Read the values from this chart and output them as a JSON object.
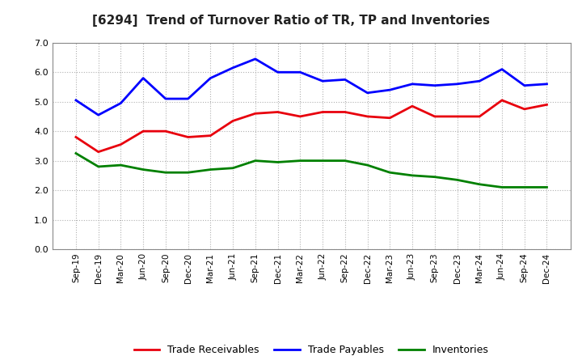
{
  "title": "[6294]  Trend of Turnover Ratio of TR, TP and Inventories",
  "x_labels": [
    "Sep-19",
    "Dec-19",
    "Mar-20",
    "Jun-20",
    "Sep-20",
    "Dec-20",
    "Mar-21",
    "Jun-21",
    "Sep-21",
    "Dec-21",
    "Mar-22",
    "Jun-22",
    "Sep-22",
    "Dec-22",
    "Mar-23",
    "Jun-23",
    "Sep-23",
    "Dec-23",
    "Mar-24",
    "Jun-24",
    "Sep-24",
    "Dec-24"
  ],
  "trade_receivables": [
    3.8,
    3.3,
    3.55,
    4.0,
    4.0,
    3.8,
    3.85,
    4.35,
    4.6,
    4.65,
    4.5,
    4.65,
    4.65,
    4.5,
    4.45,
    4.85,
    4.5,
    4.5,
    4.5,
    5.05,
    4.75,
    4.9
  ],
  "trade_payables": [
    5.05,
    4.55,
    4.95,
    5.8,
    5.1,
    5.1,
    5.8,
    6.15,
    6.45,
    6.0,
    6.0,
    5.7,
    5.75,
    5.3,
    5.4,
    5.6,
    5.55,
    5.6,
    5.7,
    6.1,
    5.55,
    5.6
  ],
  "inventories": [
    3.25,
    2.8,
    2.85,
    2.7,
    2.6,
    2.6,
    2.7,
    2.75,
    3.0,
    2.95,
    3.0,
    3.0,
    3.0,
    2.85,
    2.6,
    2.5,
    2.45,
    2.35,
    2.2,
    2.1,
    2.1,
    2.1
  ],
  "tr_color": "#e8000d",
  "tp_color": "#0000ff",
  "inv_color": "#008000",
  "ylim": [
    0.0,
    7.0
  ],
  "yticks": [
    0.0,
    1.0,
    2.0,
    3.0,
    4.0,
    5.0,
    6.0,
    7.0
  ],
  "legend_labels": [
    "Trade Receivables",
    "Trade Payables",
    "Inventories"
  ],
  "background_color": "#ffffff",
  "grid_color": "#b0b0b0",
  "line_width": 2.0
}
